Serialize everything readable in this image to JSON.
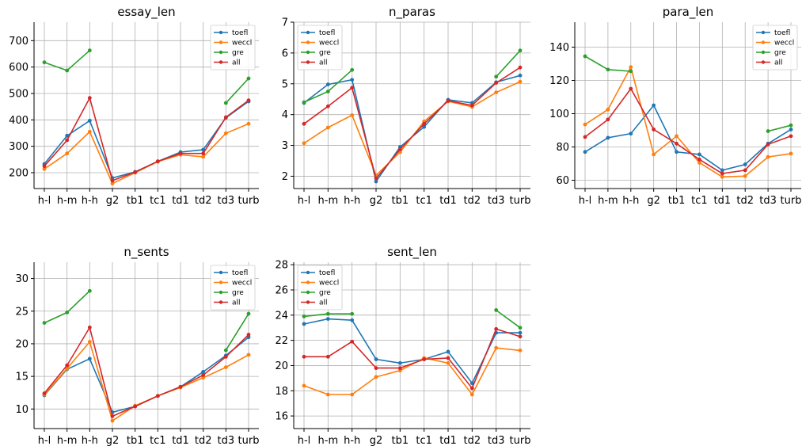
{
  "colors": {
    "toefl": "#1f77b4",
    "weccl": "#ff7f0e",
    "gre": "#2ca02c",
    "all": "#d62728",
    "grid": "#b0b0b0",
    "axis": "#000000"
  },
  "chart_data": [
    {
      "type": "line",
      "title": "essay_len",
      "categories": [
        "h-l",
        "h-m",
        "h-h",
        "g2",
        "tb1",
        "tc1",
        "td1",
        "td2",
        "td3",
        "turb"
      ],
      "ylim": [
        140,
        770
      ],
      "yticks": [
        200,
        300,
        400,
        500,
        600,
        700
      ],
      "grid": true,
      "legend": "top-right",
      "series": [
        {
          "name": "toefl",
          "values": [
            233,
            340,
            397,
            180,
            203,
            243,
            278,
            287,
            408,
            470
          ]
        },
        {
          "name": "weccl",
          "values": [
            214,
            273,
            355,
            159,
            200,
            242,
            268,
            260,
            349,
            385
          ]
        },
        {
          "name": "gre",
          "values": [
            618,
            587,
            663,
            null,
            null,
            null,
            null,
            null,
            464,
            557
          ]
        },
        {
          "name": "all",
          "values": [
            225,
            323,
            483,
            170,
            202,
            243,
            273,
            273,
            410,
            474
          ]
        }
      ]
    },
    {
      "type": "line",
      "title": "n_paras",
      "categories": [
        "h-l",
        "h-m",
        "h-h",
        "g2",
        "tb1",
        "tc1",
        "td1",
        "td2",
        "td3",
        "turb"
      ],
      "ylim": [
        1.6,
        7.0
      ],
      "yticks": [
        2,
        3,
        4,
        5,
        6,
        7
      ],
      "grid": true,
      "legend": "top-left",
      "series": [
        {
          "name": "toefl",
          "values": [
            4.38,
            4.98,
            5.13,
            1.83,
            2.95,
            3.6,
            4.48,
            4.38,
            5.05,
            5.27
          ]
        },
        {
          "name": "weccl",
          "values": [
            3.07,
            3.58,
            3.98,
            2.03,
            2.78,
            3.78,
            4.43,
            4.25,
            4.72,
            5.07
          ]
        },
        {
          "name": "gre",
          "values": [
            4.4,
            4.75,
            5.45,
            null,
            null,
            null,
            null,
            null,
            5.23,
            6.08
          ]
        },
        {
          "name": "all",
          "values": [
            3.7,
            4.27,
            4.87,
            1.93,
            2.87,
            3.7,
            4.45,
            4.3,
            5.03,
            5.53
          ]
        }
      ]
    },
    {
      "type": "line",
      "title": "para_len",
      "categories": [
        "h-l",
        "h-m",
        "h-h",
        "g2",
        "tb1",
        "tc1",
        "td1",
        "td2",
        "td3",
        "turb"
      ],
      "ylim": [
        55,
        155
      ],
      "yticks": [
        60,
        80,
        100,
        120,
        140
      ],
      "grid": true,
      "legend": "top-right",
      "series": [
        {
          "name": "toefl",
          "values": [
            77,
            85.5,
            88,
            105,
            77,
            75.5,
            66,
            69.5,
            82,
            90.5
          ]
        },
        {
          "name": "weccl",
          "values": [
            93.5,
            102.5,
            128,
            75.5,
            86.5,
            70.5,
            62,
            62.5,
            74,
            76
          ]
        },
        {
          "name": "gre",
          "values": [
            134.5,
            126.5,
            125.5,
            null,
            null,
            null,
            null,
            null,
            89.5,
            93
          ]
        },
        {
          "name": "all",
          "values": [
            86,
            96.5,
            115,
            90.5,
            82,
            72.5,
            64,
            66,
            81.5,
            86.5
          ]
        }
      ]
    },
    {
      "type": "line",
      "title": "n_sents",
      "categories": [
        "h-l",
        "h-m",
        "h-h",
        "g2",
        "tb1",
        "tc1",
        "td1",
        "td2",
        "td3",
        "turb"
      ],
      "ylim": [
        7,
        32.5
      ],
      "yticks": [
        10,
        15,
        20,
        25,
        30
      ],
      "grid": true,
      "legend": "top-right",
      "series": [
        {
          "name": "toefl",
          "values": [
            12.1,
            16.1,
            17.7,
            9.5,
            10.4,
            12.0,
            13.4,
            15.7,
            18.2,
            21.0
          ]
        },
        {
          "name": "weccl",
          "values": [
            12.2,
            16.2,
            20.3,
            8.2,
            10.5,
            12.0,
            13.3,
            14.8,
            16.4,
            18.3
          ]
        },
        {
          "name": "gre",
          "values": [
            23.2,
            24.8,
            28.1,
            null,
            null,
            null,
            null,
            null,
            19.0,
            24.6
          ]
        },
        {
          "name": "all",
          "values": [
            12.4,
            16.7,
            22.5,
            8.9,
            10.4,
            12.0,
            13.4,
            15.2,
            18.0,
            21.4
          ]
        }
      ]
    },
    {
      "type": "line",
      "title": "sent_len",
      "categories": [
        "h-l",
        "h-m",
        "h-h",
        "g2",
        "tb1",
        "tc1",
        "td1",
        "td2",
        "td3",
        "turb"
      ],
      "ylim": [
        15,
        28.2
      ],
      "yticks": [
        16,
        18,
        20,
        22,
        24,
        26,
        28
      ],
      "grid": true,
      "legend": "top-left",
      "series": [
        {
          "name": "toefl",
          "values": [
            23.3,
            23.7,
            23.6,
            20.5,
            20.2,
            20.5,
            21.1,
            18.6,
            22.6,
            22.6
          ]
        },
        {
          "name": "weccl",
          "values": [
            18.4,
            17.7,
            17.7,
            19.1,
            19.6,
            20.6,
            20.2,
            17.7,
            21.4,
            21.2
          ]
        },
        {
          "name": "gre",
          "values": [
            23.9,
            24.1,
            24.1,
            null,
            null,
            null,
            null,
            null,
            24.4,
            23.0
          ]
        },
        {
          "name": "all",
          "values": [
            20.7,
            20.7,
            21.9,
            19.8,
            19.8,
            20.5,
            20.6,
            18.2,
            22.9,
            22.3
          ]
        }
      ]
    }
  ]
}
